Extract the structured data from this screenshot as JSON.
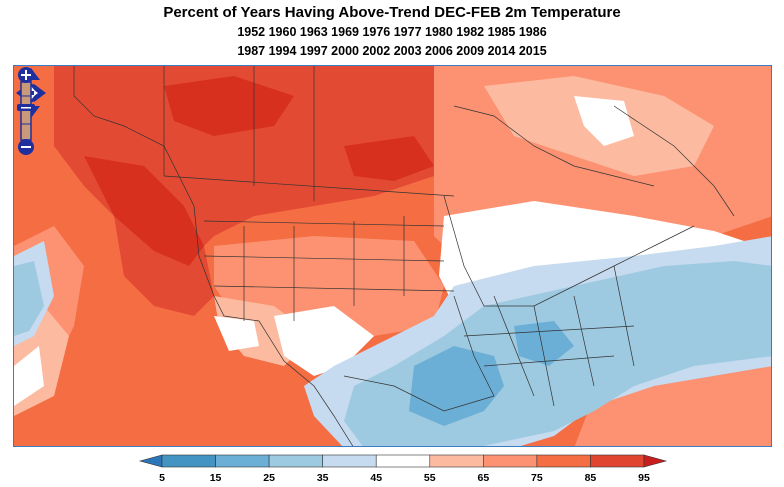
{
  "title": {
    "line1": "Percent of Years Having Above-Trend DEC-FEB 2m Temperature",
    "line2": "1952 1960 1963 1969 1976 1977 1980 1982 1985 1986",
    "line3": "1987 1994 1997 2000 2002 2003 2006 2009 2014 2015"
  },
  "controls": {
    "pan_icon": "pan-arrows-icon",
    "zoom_in_icon": "plus-icon",
    "zoom_out_icon": "minus-icon"
  },
  "legend": {
    "ticks": [
      "5",
      "15",
      "25",
      "35",
      "45",
      "55",
      "65",
      "75",
      "85",
      "95"
    ],
    "colors": [
      "#4393c3",
      "#6baed6",
      "#9ecae1",
      "#c6dbef",
      "#ffffff",
      "#fcbba1",
      "#fc9272",
      "#f46d43",
      "#e0452f"
    ],
    "low_arrow_color": "#2b75b8",
    "high_arrow_color": "#c81e1e"
  }
}
